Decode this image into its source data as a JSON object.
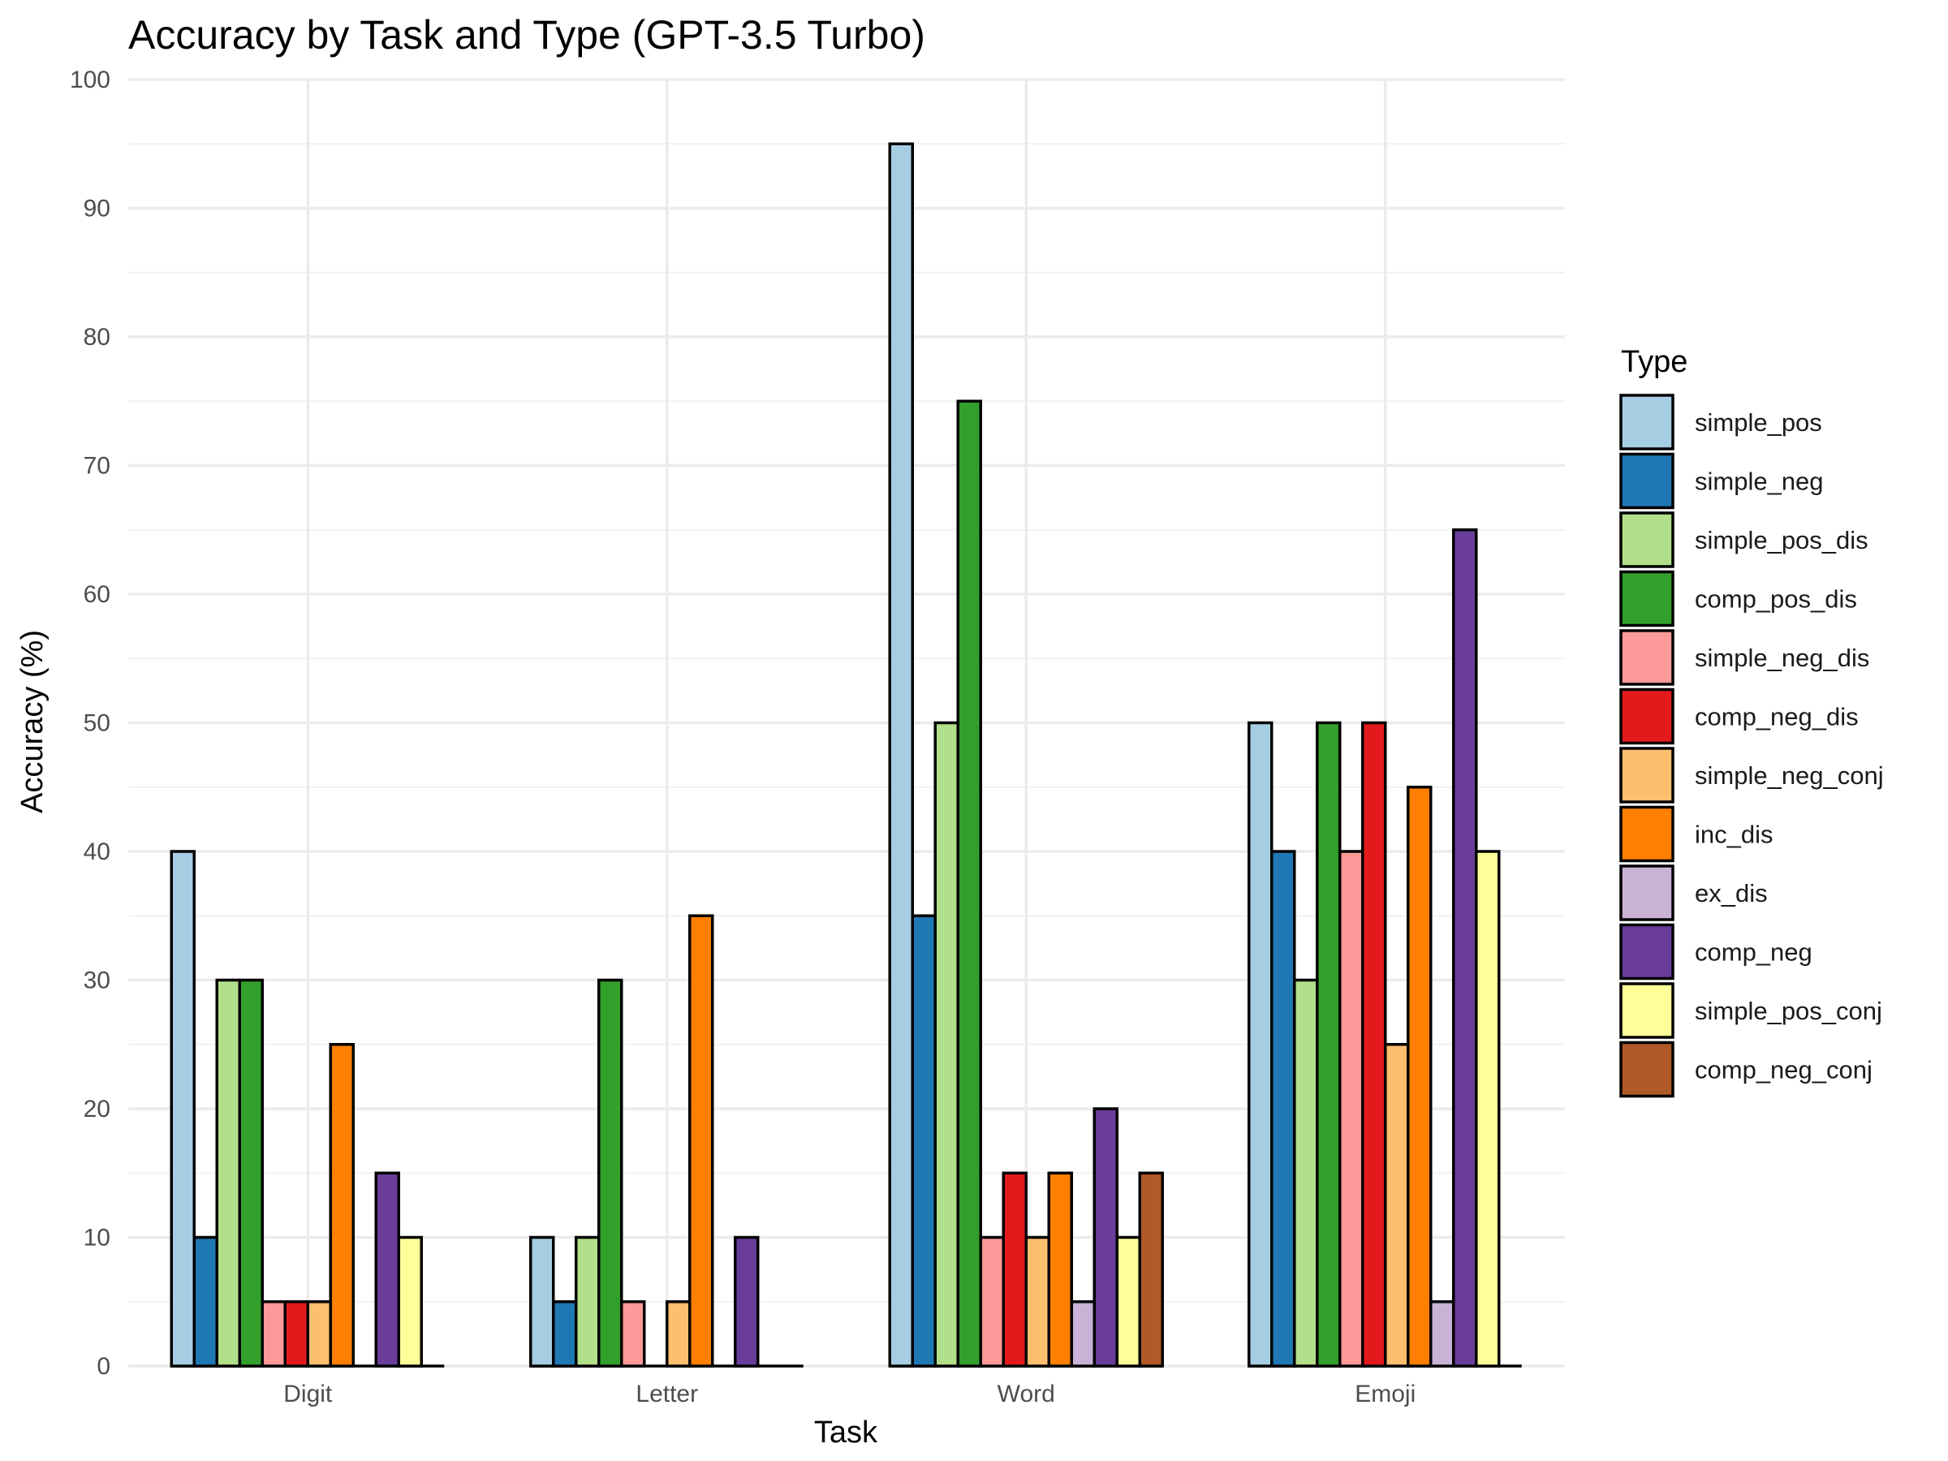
{
  "chart_data": {
    "type": "bar",
    "title": "Accuracy by Task and Type (GPT-3.5 Turbo)",
    "xlabel": "Task",
    "ylabel": "Accuracy (%)",
    "ylim": [
      0,
      100
    ],
    "yticks": [
      0,
      10,
      20,
      30,
      40,
      50,
      60,
      70,
      80,
      90,
      100
    ],
    "grid": true,
    "legend_title": "Type",
    "legend_position": "right",
    "categories": [
      "Digit",
      "Letter",
      "Word",
      "Emoji"
    ],
    "series": [
      {
        "name": "simple_pos",
        "color": "#A6CEE3",
        "values": [
          40,
          10,
          95,
          50
        ]
      },
      {
        "name": "simple_neg",
        "color": "#1F78B4",
        "values": [
          10,
          5,
          35,
          40
        ]
      },
      {
        "name": "simple_pos_dis",
        "color": "#B2DF8A",
        "values": [
          30,
          10,
          50,
          30
        ]
      },
      {
        "name": "comp_pos_dis",
        "color": "#33A02C",
        "values": [
          30,
          30,
          75,
          50
        ]
      },
      {
        "name": "simple_neg_dis",
        "color": "#FB9A99",
        "values": [
          5,
          5,
          10,
          40
        ]
      },
      {
        "name": "comp_neg_dis",
        "color": "#E31A1C",
        "values": [
          5,
          0,
          15,
          50
        ]
      },
      {
        "name": "simple_neg_conj",
        "color": "#FDBF6F",
        "values": [
          5,
          5,
          10,
          25
        ]
      },
      {
        "name": "inc_dis",
        "color": "#FF7F00",
        "values": [
          25,
          35,
          15,
          45
        ]
      },
      {
        "name": "ex_dis",
        "color": "#CAB2D6",
        "values": [
          0,
          0,
          5,
          5
        ]
      },
      {
        "name": "comp_neg",
        "color": "#6A3D9A",
        "values": [
          15,
          10,
          20,
          65
        ]
      },
      {
        "name": "simple_pos_conj",
        "color": "#FFFF99",
        "values": [
          10,
          0,
          10,
          40
        ]
      },
      {
        "name": "comp_neg_conj",
        "color": "#B15928",
        "values": [
          0,
          0,
          15,
          0
        ]
      }
    ]
  }
}
